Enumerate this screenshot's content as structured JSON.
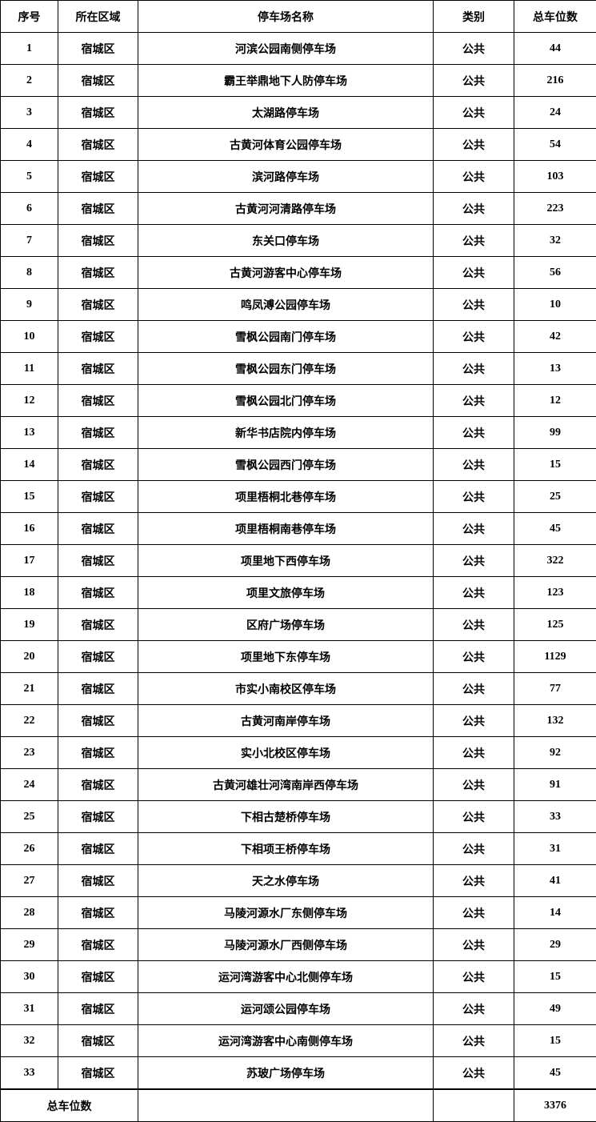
{
  "headers": [
    "序号",
    "所在区域",
    "停车场名称",
    "类别",
    "总车位数"
  ],
  "rows": [
    [
      "1",
      "宿城区",
      "河滨公园南侧停车场",
      "公共",
      "44"
    ],
    [
      "2",
      "宿城区",
      "霸王举鼎地下人防停车场",
      "公共",
      "216"
    ],
    [
      "3",
      "宿城区",
      "太湖路停车场",
      "公共",
      "24"
    ],
    [
      "4",
      "宿城区",
      "古黄河体育公园停车场",
      "公共",
      "54"
    ],
    [
      "5",
      "宿城区",
      "滨河路停车场",
      "公共",
      "103"
    ],
    [
      "6",
      "宿城区",
      "古黄河河清路停车场",
      "公共",
      "223"
    ],
    [
      "7",
      "宿城区",
      "东关口停车场",
      "公共",
      "32"
    ],
    [
      "8",
      "宿城区",
      "古黄河游客中心停车场",
      "公共",
      "56"
    ],
    [
      "9",
      "宿城区",
      "鸣凤溥公园停车场",
      "公共",
      "10"
    ],
    [
      "10",
      "宿城区",
      "雪枫公园南门停车场",
      "公共",
      "42"
    ],
    [
      "11",
      "宿城区",
      "雪枫公园东门停车场",
      "公共",
      "13"
    ],
    [
      "12",
      "宿城区",
      "雪枫公园北门停车场",
      "公共",
      "12"
    ],
    [
      "13",
      "宿城区",
      "新华书店院内停车场",
      "公共",
      "99"
    ],
    [
      "14",
      "宿城区",
      "雪枫公园西门停车场",
      "公共",
      "15"
    ],
    [
      "15",
      "宿城区",
      "项里梧桐北巷停车场",
      "公共",
      "25"
    ],
    [
      "16",
      "宿城区",
      "项里梧桐南巷停车场",
      "公共",
      "45"
    ],
    [
      "17",
      "宿城区",
      "项里地下西停车场",
      "公共",
      "322"
    ],
    [
      "18",
      "宿城区",
      "项里文旅停车场",
      "公共",
      "123"
    ],
    [
      "19",
      "宿城区",
      "区府广场停车场",
      "公共",
      "125"
    ],
    [
      "20",
      "宿城区",
      "项里地下东停车场",
      "公共",
      "1129"
    ],
    [
      "21",
      "宿城区",
      "市实小南校区停车场",
      "公共",
      "77"
    ],
    [
      "22",
      "宿城区",
      "古黄河南岸停车场",
      "公共",
      "132"
    ],
    [
      "23",
      "宿城区",
      "实小北校区停车场",
      "公共",
      "92"
    ],
    [
      "24",
      "宿城区",
      "古黄河雄壮河湾南岸西停车场",
      "公共",
      "91"
    ],
    [
      "25",
      "宿城区",
      "下相古楚桥停车场",
      "公共",
      "33"
    ],
    [
      "26",
      "宿城区",
      "下相项王桥停车场",
      "公共",
      "31"
    ],
    [
      "27",
      "宿城区",
      "天之水停车场",
      "公共",
      "41"
    ],
    [
      "28",
      "宿城区",
      "马陵河源水厂东侧停车场",
      "公共",
      "14"
    ],
    [
      "29",
      "宿城区",
      "马陵河源水厂西侧停车场",
      "公共",
      "29"
    ],
    [
      "30",
      "宿城区",
      "运河湾游客中心北侧停车场",
      "公共",
      "15"
    ],
    [
      "31",
      "宿城区",
      "运河颂公园停车场",
      "公共",
      "49"
    ],
    [
      "32",
      "宿城区",
      "运河湾游客中心南侧停车场",
      "公共",
      "15"
    ],
    [
      "33",
      "宿城区",
      "苏玻广场停车场",
      "公共",
      "45"
    ]
  ],
  "total": {
    "label": "总车位数",
    "value": "3376"
  }
}
